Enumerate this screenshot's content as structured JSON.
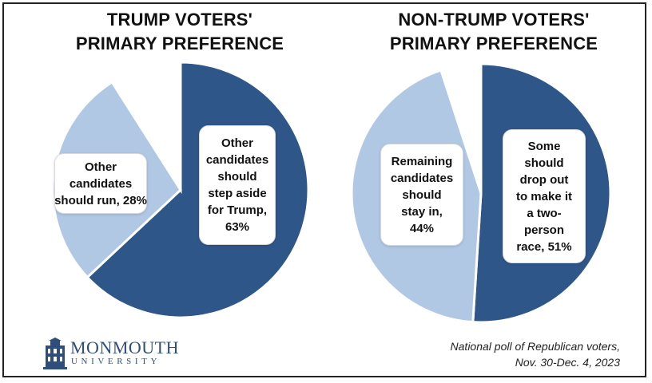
{
  "chart_data": [
    {
      "type": "pie",
      "title": [
        "TRUMP VOTERS'",
        "PRIMARY PREFERENCE"
      ],
      "slices": [
        {
          "label": [
            "Other",
            "candidates",
            "should",
            "step aside",
            "for Trump,",
            "63%"
          ],
          "value": 63,
          "color": "#2f5689"
        },
        {
          "label": [
            "Other",
            "candidates",
            "should run, 28%"
          ],
          "value": 28,
          "color": "#b1c8e4"
        },
        {
          "label": [],
          "value": 9,
          "color": "#ffffff"
        }
      ]
    },
    {
      "type": "pie",
      "title": [
        "NON-TRUMP VOTERS'",
        "PRIMARY PREFERENCE"
      ],
      "slices": [
        {
          "label": [
            "Some",
            "should",
            "drop out",
            "to make it",
            "a two-",
            "person",
            "race, 51%"
          ],
          "value": 51,
          "color": "#2f5689"
        },
        {
          "label": [
            "Remaining",
            "candidates",
            "should",
            "stay in,",
            "44%"
          ],
          "value": 44,
          "color": "#b1c8e4"
        },
        {
          "label": [],
          "value": 5,
          "color": "#ffffff"
        }
      ]
    }
  ],
  "logo": {
    "name": "MONMOUTH",
    "sub": "UNIVERSITY"
  },
  "source": [
    "National poll of Republican voters,",
    "Nov. 30-Dec. 4, 2023"
  ]
}
